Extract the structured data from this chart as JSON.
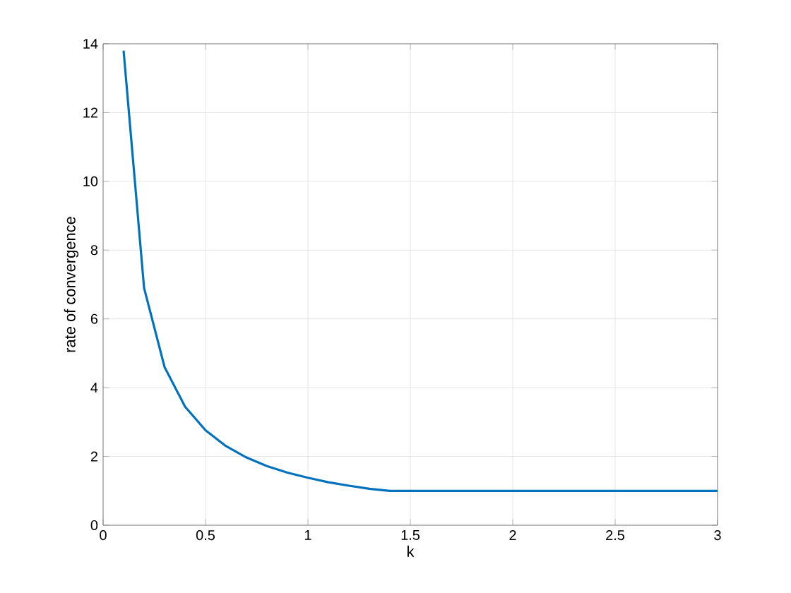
{
  "chart_data": {
    "type": "line",
    "xlabel": "k",
    "ylabel": "rate of convergence",
    "x": [
      0.1,
      0.2,
      0.3,
      0.4,
      0.5,
      0.6,
      0.7,
      0.8,
      0.9,
      1.0,
      1.1,
      1.2,
      1.3,
      1.4,
      1.5,
      2.0,
      2.5,
      3.0
    ],
    "series": [
      {
        "color": "#0072bd",
        "values": [
          13.8,
          6.9,
          4.6,
          3.45,
          2.76,
          2.3,
          1.97,
          1.72,
          1.53,
          1.38,
          1.25,
          1.15,
          1.06,
          1.0,
          1.0,
          1.0,
          1.0,
          1.0
        ]
      }
    ],
    "xlim": [
      0,
      3
    ],
    "ylim": [
      0,
      14
    ],
    "xticks": [
      0,
      0.5,
      1,
      1.5,
      2,
      2.5,
      3
    ],
    "yticks": [
      0,
      2,
      4,
      6,
      8,
      10,
      12,
      14
    ],
    "grid": true,
    "marker": "none",
    "line_style": "solid"
  }
}
